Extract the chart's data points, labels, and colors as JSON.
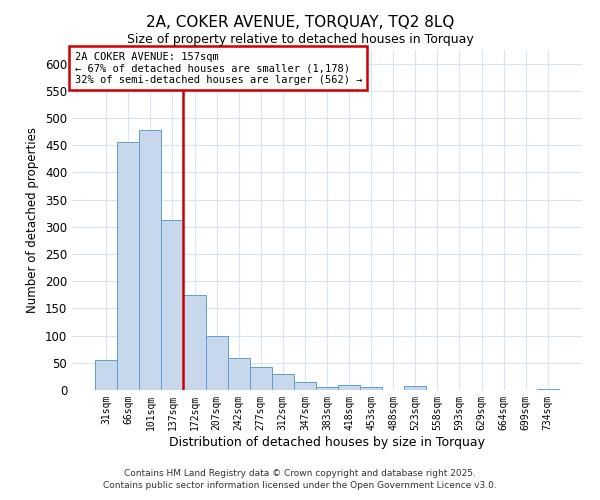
{
  "title": "2A, COKER AVENUE, TORQUAY, TQ2 8LQ",
  "subtitle": "Size of property relative to detached houses in Torquay",
  "xlabel": "Distribution of detached houses by size in Torquay",
  "ylabel": "Number of detached properties",
  "bar_labels": [
    "31sqm",
    "66sqm",
    "101sqm",
    "137sqm",
    "172sqm",
    "207sqm",
    "242sqm",
    "277sqm",
    "312sqm",
    "347sqm",
    "383sqm",
    "418sqm",
    "453sqm",
    "488sqm",
    "523sqm",
    "558sqm",
    "593sqm",
    "629sqm",
    "664sqm",
    "699sqm",
    "734sqm"
  ],
  "bar_values": [
    55,
    455,
    478,
    312,
    175,
    100,
    58,
    42,
    30,
    15,
    6,
    9,
    5,
    0,
    7,
    0,
    0,
    0,
    0,
    0,
    2
  ],
  "bar_color": "#c8d8ec",
  "bar_edge_color": "#5a9fd4",
  "ylim": [
    0,
    625
  ],
  "yticks": [
    0,
    50,
    100,
    150,
    200,
    250,
    300,
    350,
    400,
    450,
    500,
    550,
    600
  ],
  "vline_color": "#cc0000",
  "vline_x": 3.5,
  "annotation_line1": "2A COKER AVENUE: 157sqm",
  "annotation_line2": "← 67% of detached houses are smaller (1,178)",
  "annotation_line3": "32% of semi-detached houses are larger (562) →",
  "annotation_box_color": "#cc0000",
  "bg_color": "#ffffff",
  "grid_color": "#d8e4f0",
  "footer_line1": "Contains HM Land Registry data © Crown copyright and database right 2025.",
  "footer_line2": "Contains public sector information licensed under the Open Government Licence v3.0."
}
